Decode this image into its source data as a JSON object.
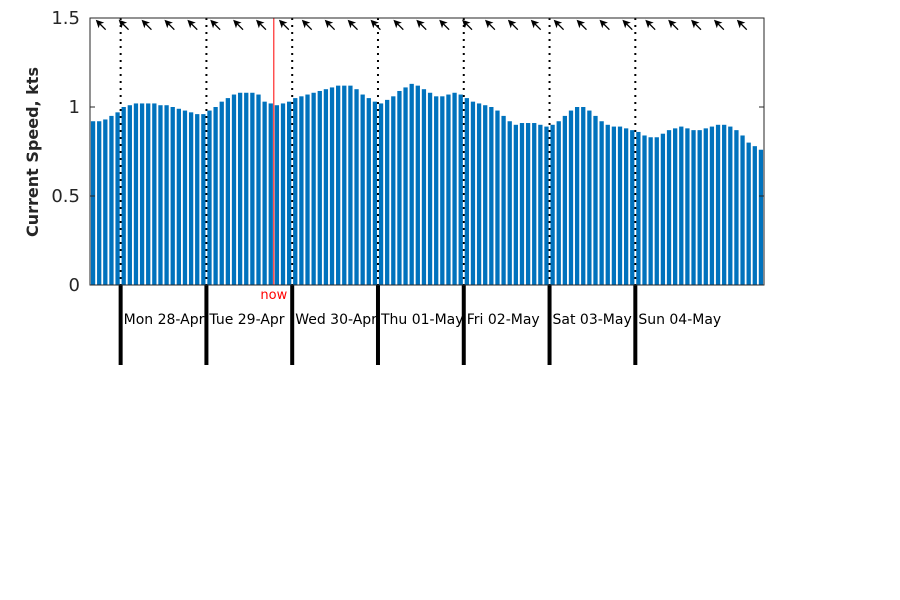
{
  "chart_data": {
    "type": "bar",
    "title": "",
    "xlabel": "",
    "ylabel": "Current Speed, kts",
    "ylim": [
      0,
      1.5
    ],
    "yticks": [
      0,
      0.5,
      1,
      1.5
    ],
    "ytick_labels": [
      "0",
      "0.5",
      "1",
      "1.5"
    ],
    "grid": false,
    "legend": "none",
    "bar_color": "#0072bd",
    "now_color": "#ff0000",
    "now_label": "now",
    "now_index": 30,
    "day_start_indices": [
      5,
      19,
      33,
      47,
      61,
      75,
      89
    ],
    "day_labels": [
      "Mon 28-Apr",
      "Tue 29-Apr",
      "Wed 30-Apr",
      "Thu 01-May",
      "Fri 02-May",
      "Sat 03-May",
      "Sun 04-May"
    ],
    "direction_arrow_count": 29,
    "values": [
      0.92,
      0.92,
      0.93,
      0.95,
      0.97,
      1.0,
      1.01,
      1.02,
      1.02,
      1.02,
      1.02,
      1.01,
      1.01,
      1.0,
      0.99,
      0.98,
      0.97,
      0.96,
      0.96,
      0.98,
      1.0,
      1.03,
      1.05,
      1.07,
      1.08,
      1.08,
      1.08,
      1.07,
      1.03,
      1.02,
      1.01,
      1.02,
      1.03,
      1.05,
      1.06,
      1.07,
      1.08,
      1.09,
      1.1,
      1.11,
      1.12,
      1.12,
      1.12,
      1.1,
      1.07,
      1.05,
      1.03,
      1.02,
      1.04,
      1.06,
      1.09,
      1.11,
      1.13,
      1.12,
      1.1,
      1.08,
      1.06,
      1.06,
      1.07,
      1.08,
      1.07,
      1.05,
      1.03,
      1.02,
      1.01,
      1.0,
      0.98,
      0.95,
      0.92,
      0.9,
      0.91,
      0.91,
      0.91,
      0.9,
      0.89,
      0.9,
      0.92,
      0.95,
      0.98,
      1.0,
      1.0,
      0.98,
      0.95,
      0.92,
      0.9,
      0.89,
      0.89,
      0.88,
      0.87,
      0.86,
      0.84,
      0.83,
      0.83,
      0.85,
      0.87,
      0.88,
      0.89,
      0.88,
      0.87,
      0.87,
      0.88,
      0.89,
      0.9,
      0.9,
      0.89,
      0.87,
      0.84,
      0.8,
      0.78,
      0.76
    ]
  }
}
